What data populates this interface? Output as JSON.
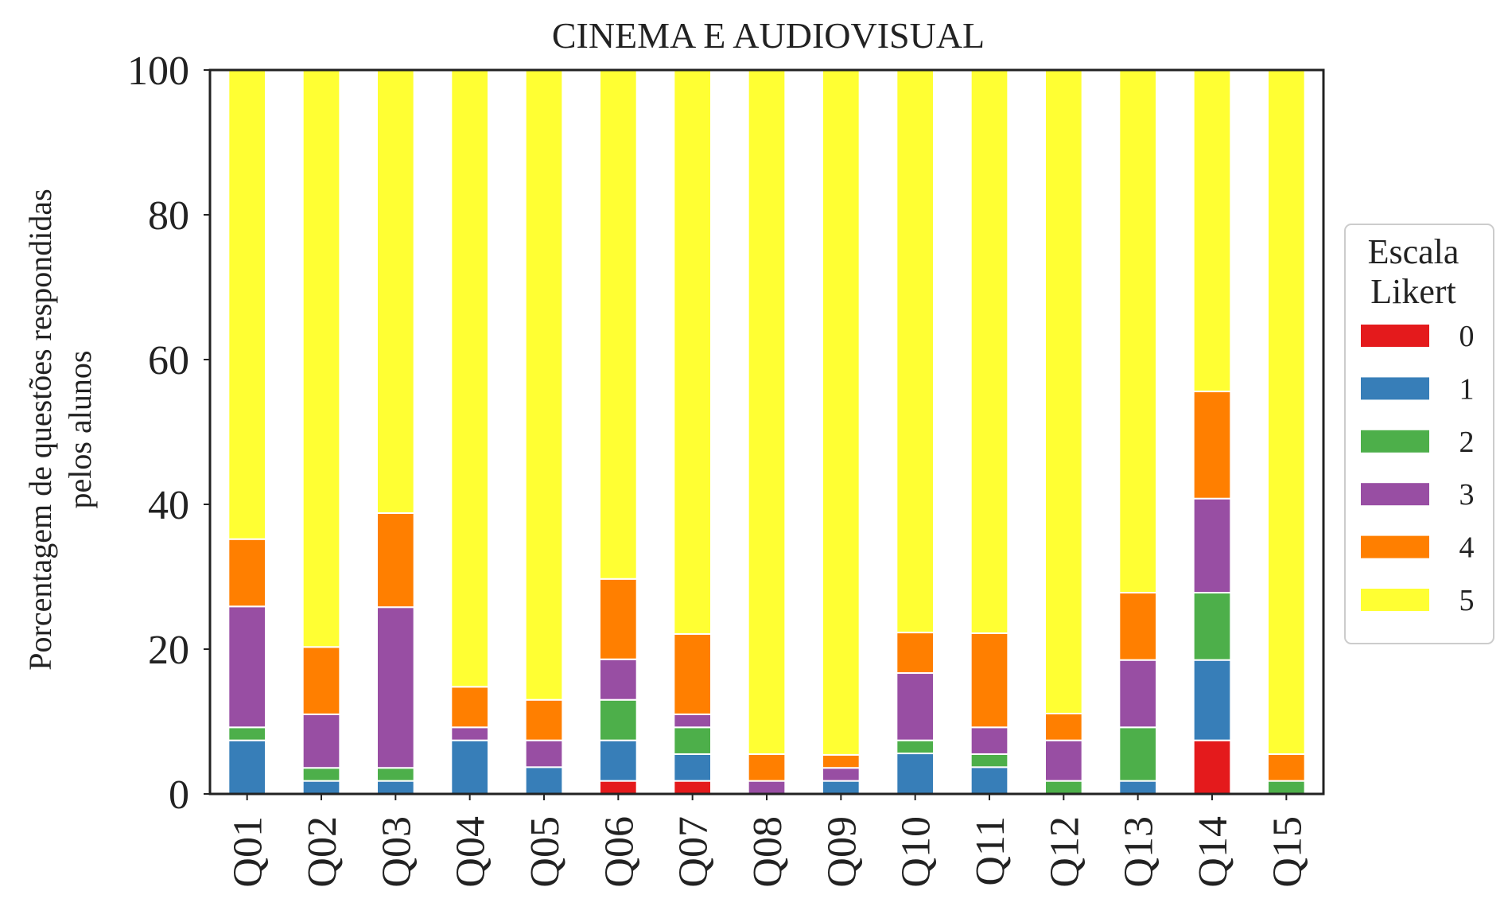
{
  "chart_data": {
    "type": "bar",
    "stacked": true,
    "title": "CINEMA E AUDIOVISUAL",
    "xlabel": "",
    "ylabel_lines": [
      "Porcentagem de questões respondidas",
      "pelos alunos"
    ],
    "ylim": [
      0,
      100
    ],
    "yticks": [
      "0",
      "20",
      "40",
      "60",
      "80",
      "100"
    ],
    "grid": false,
    "legend": {
      "title_lines": [
        "Escala",
        "Likert"
      ],
      "placement": "right"
    },
    "categories": [
      "Q01",
      "Q02",
      "Q03",
      "Q04",
      "Q05",
      "Q06",
      "Q07",
      "Q08",
      "Q09",
      "Q10",
      "Q11",
      "Q12",
      "Q13",
      "Q14",
      "Q15"
    ],
    "series": [
      {
        "name": "0",
        "color": "#e41a1c",
        "values": [
          0,
          0,
          0,
          0,
          0,
          1.8,
          1.8,
          0,
          0,
          0,
          0,
          0,
          0,
          7.4,
          0
        ]
      },
      {
        "name": "1",
        "color": "#377eb8",
        "values": [
          7.4,
          1.8,
          1.8,
          7.4,
          3.7,
          5.6,
          3.7,
          0,
          1.8,
          5.6,
          3.7,
          0,
          1.8,
          11.1,
          0
        ]
      },
      {
        "name": "2",
        "color": "#4daf4a",
        "values": [
          1.8,
          1.8,
          1.8,
          0,
          0,
          5.6,
          3.7,
          0,
          0,
          1.8,
          1.8,
          1.8,
          7.4,
          9.3,
          1.8
        ]
      },
      {
        "name": "3",
        "color": "#984ea3",
        "values": [
          16.7,
          7.4,
          22.2,
          1.8,
          3.7,
          5.6,
          1.8,
          1.8,
          1.8,
          9.3,
          3.7,
          5.6,
          9.3,
          13.0,
          0
        ]
      },
      {
        "name": "4",
        "color": "#ff7f00",
        "values": [
          9.3,
          9.3,
          13.0,
          5.6,
          5.6,
          11.1,
          11.1,
          3.7,
          1.8,
          5.6,
          13.0,
          3.7,
          9.3,
          14.8,
          3.7
        ]
      },
      {
        "name": "5",
        "color": "#ffff33",
        "values": [
          64.8,
          79.7,
          61.2,
          85.2,
          87.0,
          70.3,
          77.9,
          94.5,
          94.6,
          77.7,
          77.8,
          88.9,
          72.2,
          44.4,
          94.5
        ]
      }
    ]
  }
}
